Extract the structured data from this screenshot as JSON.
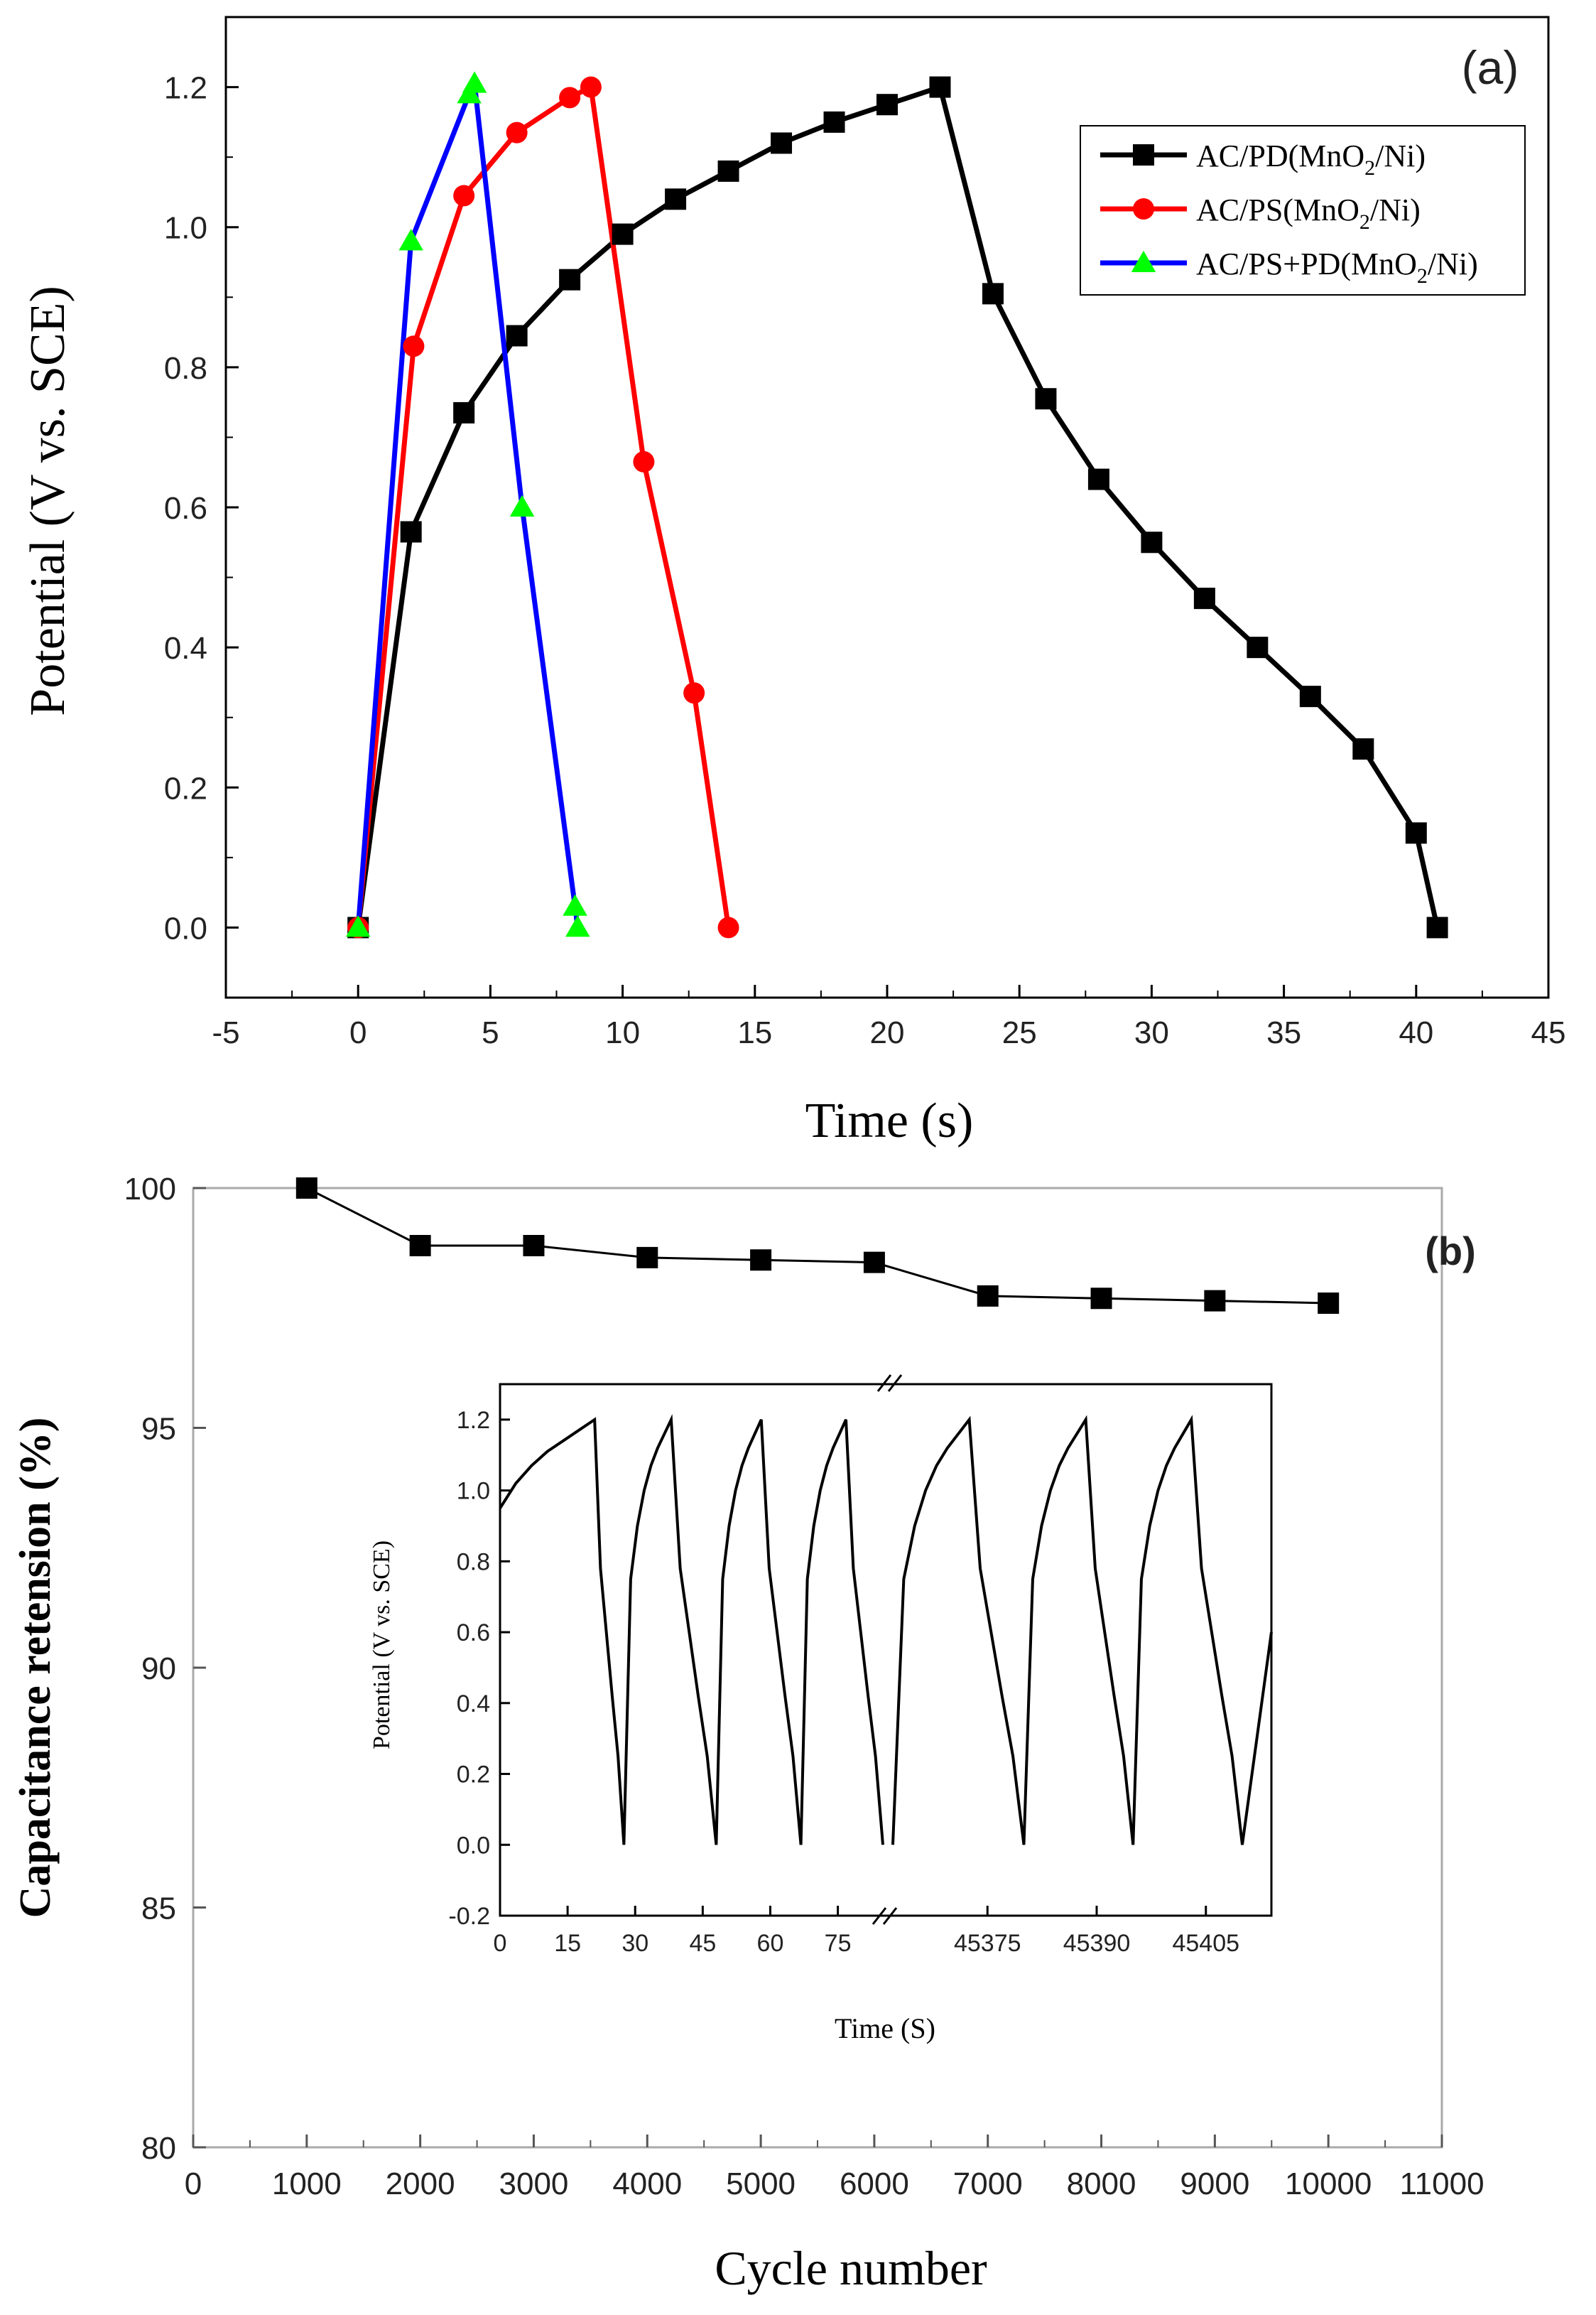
{
  "chart_data": [
    {
      "type": "line",
      "panel_label": "(a)",
      "xlabel": "Time (s)",
      "ylabel": "Potential (V vs. SCE)",
      "xlim": [
        -5,
        45
      ],
      "ylim": [
        -0.1,
        1.3
      ],
      "xticks": [
        "-5",
        "0",
        "5",
        "10",
        "15",
        "20",
        "25",
        "30",
        "35",
        "40",
        "45"
      ],
      "yticks": [
        "0.0",
        "0.2",
        "0.4",
        "0.6",
        "0.8",
        "1.0",
        "1.2"
      ],
      "legend_position": "top-right",
      "series": [
        {
          "name": "AC/PD(MnO2/Ni)",
          "name_main": "AC/PD(MnO",
          "name_sub": "2",
          "name_tail": "/Ni)",
          "color": "#000000",
          "marker": "square",
          "x": [
            0,
            2,
            4,
            6,
            8,
            10,
            12,
            14,
            16,
            18,
            20,
            22,
            24,
            26,
            28,
            30,
            32,
            34,
            36,
            38,
            40,
            40.8
          ],
          "y": [
            0,
            0.565,
            0.735,
            0.845,
            0.925,
            0.99,
            1.04,
            1.08,
            1.12,
            1.15,
            1.175,
            1.2,
            0.905,
            0.755,
            0.64,
            0.55,
            0.47,
            0.4,
            0.33,
            0.255,
            0.135,
            0
          ]
        },
        {
          "name": "AC/PS(MnO2/Ni)",
          "name_main": "AC/PS(MnO",
          "name_sub": "2",
          "name_tail": "/Ni)",
          "color": "#ff0000",
          "marker": "circle",
          "x": [
            0,
            2.1,
            4.0,
            6.0,
            8.0,
            8.8,
            10.8,
            12.7,
            14.0
          ],
          "y": [
            0,
            0.83,
            1.045,
            1.135,
            1.185,
            1.2,
            0.665,
            0.335,
            0
          ]
        },
        {
          "name": "AC/PS+PD(MnO2/Ni)",
          "name_main": "AC/PS+PD(MnO",
          "name_sub": "2",
          "name_tail": "/Ni)",
          "color": "#0000ff",
          "marker_color": "#00ff00",
          "marker": "triangle",
          "x": [
            0,
            2.0,
            4.2,
            4.4,
            6.2,
            8.2,
            8.3
          ],
          "y": [
            0,
            0.98,
            1.19,
            1.205,
            0.6,
            0.03,
            0
          ]
        }
      ]
    },
    {
      "type": "line",
      "panel_label": "(b)",
      "xlabel": "Cycle number",
      "ylabel": "Capacitance retension (%)",
      "xlim": [
        0,
        11000
      ],
      "ylim": [
        80,
        100
      ],
      "xticks": [
        "0",
        "1000",
        "2000",
        "3000",
        "4000",
        "5000",
        "6000",
        "7000",
        "8000",
        "9000",
        "10000",
        "11000"
      ],
      "yticks": [
        "80",
        "85",
        "90",
        "95",
        "100"
      ],
      "series": [
        {
          "color": "#000000",
          "marker": "square",
          "x": [
            1000,
            2000,
            3000,
            4000,
            5000,
            6000,
            7000,
            8000,
            9000,
            10000
          ],
          "y": [
            100,
            98.8,
            98.8,
            98.55,
            98.5,
            98.45,
            97.75,
            97.7,
            97.65,
            97.6
          ]
        }
      ],
      "inset": {
        "type": "line",
        "xlabel": "Time (S)",
        "ylabel": "Potential  (V vs. SCE)",
        "ylim": [
          -0.2,
          1.3
        ],
        "xticks": [
          "0",
          "15",
          "30",
          "45",
          "60",
          "75",
          "45375",
          "45390",
          "45405"
        ],
        "yticks": [
          "-0.2",
          "0.0",
          "0.2",
          "0.4",
          "0.6",
          "0.8",
          "1.0",
          "1.2"
        ],
        "axis_break": "//",
        "first_segment_time_range": [
          0,
          85
        ],
        "second_segment_time_range": [
          45362,
          45414
        ],
        "cycle_charge_profile_y": [
          0.0,
          0.75,
          0.9,
          1.0,
          1.07,
          1.12,
          1.16,
          1.2
        ],
        "cycle_discharge_profile_y": [
          1.2,
          0.78,
          0.6,
          0.42,
          0.25,
          0.0
        ],
        "first_charge_start_y": 0.95,
        "end_y": 0.6
      }
    }
  ]
}
